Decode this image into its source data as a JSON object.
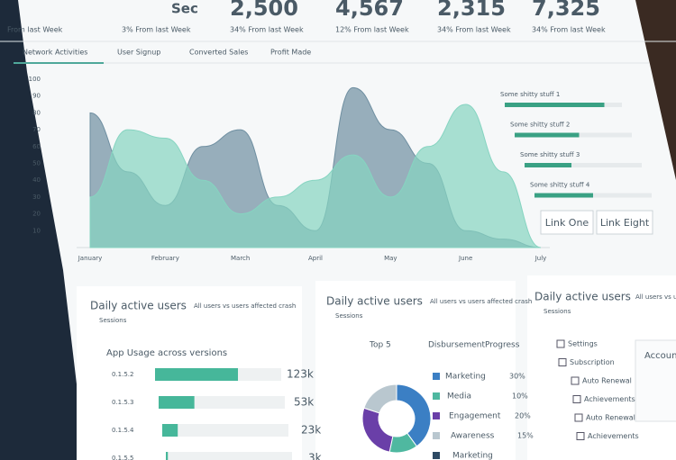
{
  "stats": [
    {
      "change": "From last Week"
    },
    {
      "value": "Sec",
      "change": "3% From last Week"
    },
    {
      "value": "2,500",
      "change": "34% From last Week"
    },
    {
      "value": "4,567",
      "change": "12% From last Week"
    },
    {
      "value": "2,315",
      "change": "34% From last Week"
    },
    {
      "value": "7,325",
      "change": "34% From last Week"
    }
  ],
  "tabs": [
    "Network Activities",
    "User Signup",
    "Converted Sales",
    "Profit Made"
  ],
  "network_chart": {
    "categories": [
      "January",
      null,
      "February",
      null,
      "March",
      null,
      "April",
      null,
      "May",
      null,
      "June",
      null,
      "July"
    ],
    "series": [
      {
        "color": "#6f8fa1",
        "values": [
          80,
          45,
          25,
          60,
          70,
          25,
          10,
          95,
          70,
          50,
          10,
          5,
          0
        ]
      },
      {
        "color": "#86d4c1",
        "values": [
          30,
          70,
          65,
          40,
          20,
          30,
          40,
          55,
          30,
          60,
          85,
          45,
          0
        ]
      }
    ],
    "ylim": [
      0,
      100
    ],
    "yticks": [
      10,
      20,
      30,
      40,
      50,
      60,
      70,
      80,
      90,
      100
    ],
    "legend": [
      {
        "name": "Some shitty stuff 1",
        "value": 85
      },
      {
        "name": "Some shitty stuff 2",
        "value": 55
      },
      {
        "name": "Some shitty stuff 3",
        "value": 40
      },
      {
        "name": "Some shitty stuff 4",
        "value": 50
      }
    ]
  },
  "links": [
    "Link One",
    "Link Eight"
  ],
  "panels": [
    {
      "title": "Daily active users",
      "note": "All users vs users affected crash",
      "sub": "Sessions",
      "chart_title": "App Usage across versions",
      "rows": [
        {
          "name": "0.1.5.2",
          "value": {
            "value": 123000,
            "label": "123k"
          }
        },
        {
          "name": "0.1.5.3",
          "value": {
            "value": 53000,
            "label": "53k"
          }
        },
        {
          "name": "0.1.5.4",
          "value": {
            "value": 23000,
            "label": "23k"
          }
        },
        {
          "name": "0.1.5.5",
          "value": {
            "value": 3000,
            "label": "3k"
          }
        }
      ]
    },
    {
      "title": "Daily active users",
      "note": "All users vs users affected crash",
      "sub": "Sessions",
      "headers": [
        "Top 5",
        "Disbursement",
        "Progress"
      ],
      "rows": [
        {
          "name": "Marketing",
          "color": "#3b7fc4",
          "value": {
            "value": 30,
            "label": "30%"
          }
        },
        {
          "name": "Media",
          "color": "#4fb8a0",
          "value": {
            "value": 10,
            "label": "10%"
          }
        },
        {
          "name": "Engagement",
          "color": "#6a3fa8",
          "value": {
            "value": 20,
            "label": "20%"
          }
        },
        {
          "name": "Awareness",
          "color": "#b9c7cf",
          "value": {
            "value": 15,
            "label": "15%"
          }
        },
        {
          "name": "Marketing",
          "color": "#2d4a63"
        }
      ]
    },
    {
      "title": "Daily active users",
      "note": "All users vs users affected crash",
      "sub": "Sessions",
      "menu": [
        "Settings",
        "Subscription",
        "Auto Renewal",
        "Achievements",
        "Auto Renewal",
        "Achievements"
      ],
      "side": "Account"
    }
  ]
}
